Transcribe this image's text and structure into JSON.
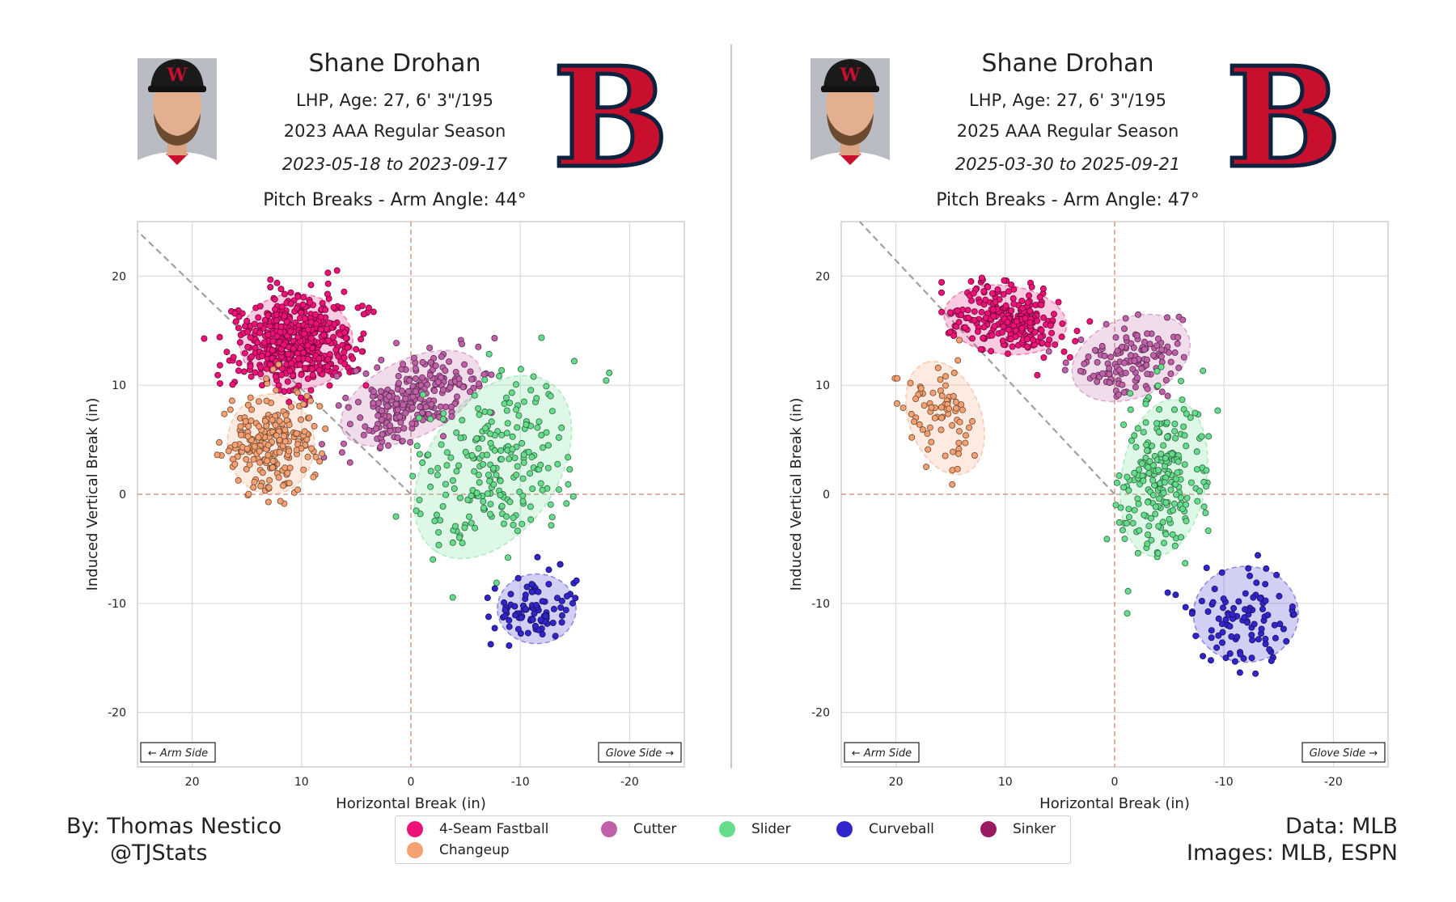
{
  "credits": {
    "by": "By: Thomas Nestico",
    "handle": "@TJStats",
    "data": "Data: MLB",
    "images": "Images: MLB, ESPN"
  },
  "legend": [
    {
      "name": "4-Seam Fastball",
      "color": "#ee1177"
    },
    {
      "name": "Cutter",
      "color": "#c060a8"
    },
    {
      "name": "Slider",
      "color": "#66dd8c"
    },
    {
      "name": "Curveball",
      "color": "#3325cc"
    },
    {
      "name": "Sinker",
      "color": "#9b1b63"
    },
    {
      "name": "Changeup",
      "color": "#f4a070"
    }
  ],
  "chart_data": [
    {
      "type": "scatter",
      "player": "Shane Drohan",
      "bio": "LHP, Age: 27, 6' 3\"/195",
      "season": "2023 AAA Regular Season",
      "dates": "2023-05-18 to 2023-09-17",
      "title": "Pitch Breaks - Arm Angle: 44°",
      "xlabel": "Horizontal Break (in)",
      "ylabel": "Induced Vertical Break (in)",
      "xlim": [
        25,
        -25
      ],
      "ylim": [
        -25,
        25
      ],
      "xticks": [
        20,
        10,
        0,
        -10,
        -20
      ],
      "yticks": [
        20,
        10,
        0,
        -10,
        -20
      ],
      "arm_angle": 44,
      "arm_side_label": "← Arm Side",
      "glove_side_label": "Glove Side →",
      "pitches": [
        {
          "pitch": "4-Seam Fastball",
          "color": "#ee1177",
          "mean": [
            10.5,
            14
          ],
          "sd": [
            2.6,
            2.2
          ],
          "corr": 0,
          "n": 520
        },
        {
          "pitch": "Cutter",
          "color": "#c060a8",
          "mean": [
            0,
            8.8
          ],
          "sd": [
            3.2,
            2.2
          ],
          "corr": -0.5,
          "n": 260
        },
        {
          "pitch": "Slider",
          "color": "#66dd8c",
          "mean": [
            -7.5,
            2.5
          ],
          "sd": [
            3.6,
            4.2
          ],
          "corr": -0.4,
          "n": 230
        },
        {
          "pitch": "Curveball",
          "color": "#3325cc",
          "mean": [
            -11.5,
            -10.5
          ],
          "sd": [
            1.8,
            1.6
          ],
          "corr": 0,
          "n": 90
        },
        {
          "pitch": "Changeup",
          "color": "#f4a070",
          "mean": [
            12.8,
            4.6
          ],
          "sd": [
            2.0,
            2.3
          ],
          "corr": 0,
          "n": 230
        }
      ]
    },
    {
      "type": "scatter",
      "player": "Shane Drohan",
      "bio": "LHP, Age: 27, 6' 3\"/195",
      "season": "2025 AAA Regular Season",
      "dates": "2025-03-30 to 2025-09-21",
      "title": "Pitch Breaks - Arm Angle: 47°",
      "xlabel": "Horizontal Break (in)",
      "ylabel": "Induced Vertical Break (in)",
      "xlim": [
        25,
        -25
      ],
      "ylim": [
        -25,
        25
      ],
      "xticks": [
        20,
        10,
        0,
        -10,
        -20
      ],
      "yticks": [
        20,
        10,
        0,
        -10,
        -20
      ],
      "arm_angle": 47,
      "arm_side_label": "← Arm Side",
      "glove_side_label": "Glove Side →",
      "pitches": [
        {
          "pitch": "4-Seam Fastball",
          "color": "#ee1177",
          "mean": [
            10,
            16
          ],
          "sd": [
            2.8,
            1.6
          ],
          "corr": 0.15,
          "n": 250
        },
        {
          "pitch": "Cutter",
          "color": "#c060a8",
          "mean": [
            -1.5,
            12.5
          ],
          "sd": [
            2.7,
            2.0
          ],
          "corr": -0.3,
          "n": 140
        },
        {
          "pitch": "Slider",
          "color": "#66dd8c",
          "mean": [
            -4.5,
            1.5
          ],
          "sd": [
            2.0,
            3.6
          ],
          "corr": -0.2,
          "n": 230
        },
        {
          "pitch": "Curveball",
          "color": "#3325cc",
          "mean": [
            -12,
            -11
          ],
          "sd": [
            2.4,
            2.2
          ],
          "corr": 0,
          "n": 100
        },
        {
          "pitch": "Changeup",
          "color": "#f4a070",
          "mean": [
            15.5,
            7
          ],
          "sd": [
            1.8,
            2.6
          ],
          "corr": 0.3,
          "n": 75
        }
      ]
    }
  ]
}
